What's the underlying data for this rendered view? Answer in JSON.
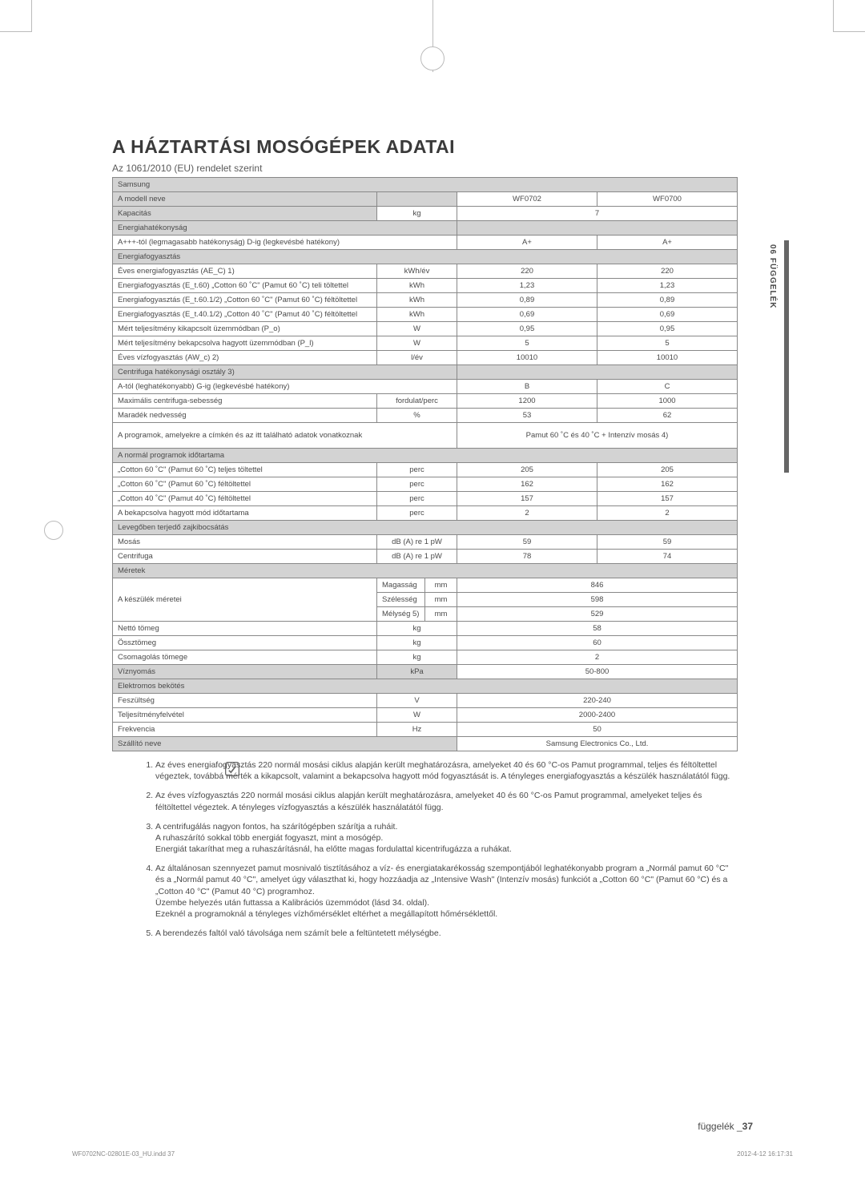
{
  "title": "A HÁZTARTÁSI MOSÓGÉPEK ADATAI",
  "subtitle": "Az 1061/2010 (EU) rendelet szerint",
  "side_tab": "06 FÜGGELÉK",
  "footer_right_label": "függelék _",
  "footer_right_page": "37",
  "footer_left": "WF0702NC-02801E-03_HU.indd   37",
  "footer_ts": "2012-4-12   16:17:31",
  "brand_row": "Samsung",
  "model_label": "A modell neve",
  "models": [
    "WF0702",
    "WF0700"
  ],
  "capacity_label": "Kapacitás",
  "capacity_unit": "kg",
  "capacity_val": "7",
  "eneff_label": "Energiahatékonyság",
  "eneff_scale": "A+++-tól (legmagasabb hatékonyság) D-ig (legkevésbé hatékony)",
  "eneff": [
    "A+",
    "A+"
  ],
  "encons_label": "Energiafogyasztás",
  "rows1": [
    {
      "l": "Éves energiafogyasztás (AE_C) 1)",
      "u": "kWh/év",
      "v": [
        "220",
        "220"
      ],
      "sup": true
    },
    {
      "l": "Energiafogyasztás (E_t.60) „Cotton 60 ˚C\" (Pamut 60 ˚C) teli töltettel",
      "u": "kWh",
      "v": [
        "1,23",
        "1,23"
      ]
    },
    {
      "l": "Energiafogyasztás (E_t.60.1/2) „Cotton 60 ˚C\" (Pamut 60 ˚C) féltöltettel",
      "u": "kWh",
      "v": [
        "0,89",
        "0,89"
      ]
    },
    {
      "l": "Energiafogyasztás (E_t.40.1/2) „Cotton 40 ˚C\" (Pamut 40 ˚C) féltöltettel",
      "u": "kWh",
      "v": [
        "0,69",
        "0,69"
      ]
    },
    {
      "l": "Mért teljesítmény kikapcsolt üzemmódban (P_o)",
      "u": "W",
      "v": [
        "0,95",
        "0,95"
      ]
    },
    {
      "l": "Mért teljesítmény bekapcsolva hagyott üzemmódban (P_l)",
      "u": "W",
      "v": [
        "5",
        "5"
      ]
    },
    {
      "l": "Éves vízfogyasztás (AW_c) 2)",
      "u": "l/év",
      "v": [
        "10010",
        "10010"
      ],
      "sup": true
    }
  ],
  "spineff_label": "Centrifuga hatékonysági osztály 3)",
  "spineff_scale": "A-tól (leghatékonyabb) G-ig (legkevésbé hatékony)",
  "spineff": [
    "B",
    "C"
  ],
  "maxspin_label": "Maximális centrifuga-sebesség",
  "maxspin_unit": "fordulat/perc",
  "maxspin": [
    "1200",
    "1000"
  ],
  "moist_label": "Maradék nedvesség",
  "moist_unit": "%",
  "moist": [
    "53",
    "62"
  ],
  "prog_span_label": "A programok, amelyekre a címkén és az itt található adatok vonatkoznak",
  "prog_span_val": "Pamut 60 ˚C és 40 ˚C + Intenzív mosás 4)",
  "progdur_label": "A normál programok időtartama",
  "rows2": [
    {
      "l": "„Cotton 60 ˚C\" (Pamut 60 ˚C) teljes töltettel",
      "u": "perc",
      "v": [
        "205",
        "205"
      ]
    },
    {
      "l": "„Cotton 60 ˚C\" (Pamut 60 ˚C) féltöltettel",
      "u": "perc",
      "v": [
        "162",
        "162"
      ]
    },
    {
      "l": "„Cotton 40 ˚C\" (Pamut 40 ˚C) féltöltettel",
      "u": "perc",
      "v": [
        "157",
        "157"
      ]
    },
    {
      "l": "A bekapcsolva hagyott mód időtartama",
      "u": "perc",
      "v": [
        "2",
        "2"
      ]
    }
  ],
  "noise_label": "Levegőben terjedő zajkibocsátás",
  "wash_label": "Mosás",
  "wash_unit": "dB (A) re 1 pW",
  "wash": [
    "59",
    "59"
  ],
  "spin_label": "Centrifuga",
  "spin_unit": "dB (A) re 1 pW",
  "spin": [
    "78",
    "74"
  ],
  "dims_label": "Méretek",
  "appdim_label": "A készülék méretei",
  "dim_h_lbl": "Magasság",
  "dim_h": "846",
  "dim_w_lbl": "Szélesség",
  "dim_w": "598",
  "dim_d_lbl": "Mélység 5)",
  "dim_d": "529",
  "mm": "mm",
  "net_label": "Nettó tömeg",
  "net_unit": "kg",
  "net_val": "58",
  "gross_label": "Össztömeg",
  "gross_unit": "kg",
  "gross_val": "60",
  "pack_label": "Csomagolás tömege",
  "pack_unit": "kg",
  "pack_val": "2",
  "press_label": "Víznyomás",
  "press_unit": "kPa",
  "press_val": "50-800",
  "elec_label": "Elektromos bekötés",
  "volt_label": "Feszültség",
  "volt_unit": "V",
  "volt_val": "220-240",
  "pow_label": "Teljesítményfelvétel",
  "pow_unit": "W",
  "pow_val": "2000-2400",
  "freq_label": "Frekvencia",
  "freq_unit": "Hz",
  "freq_val": "50",
  "supp_label": "Szállító neve",
  "supp_val": "Samsung Electronics Co., Ltd.",
  "notes": [
    "Az éves energiafogyasztás 220 normál mosási ciklus alapján került meghatározásra, amelyeket 40 és 60 °C-os Pamut programmal, teljes és féltöltettel végeztek, továbbá mérték a kikapcsolt, valamint a bekapcsolva hagyott mód fogyasztását is. A tényleges energiafogyasztás a készülék használatától függ.",
    "Az éves vízfogyasztás 220 normál mosási ciklus alapján került meghatározásra, amelyeket 40 és 60 °C-os Pamut programmal, amelyeket teljes és féltöltettel végeztek. A tényleges vízfogyasztás a készülék használatától függ.",
    "A centrifugálás nagyon fontos, ha szárítógépben szárítja a ruháit.\nA ruhaszárító sokkal több energiát fogyaszt, mint a mosógép.\nEnergiát takaríthat meg a ruhaszárításnál, ha előtte magas fordulattal kicentrifugázza a ruhákat.",
    "Az általánosan szennyezet pamut mosnivaló tisztításához a víz- és energiatakarékosság szempontjából leghatékonyabb program a „Normál pamut 60 °C\" és a „Normál pamut 40 °C\", amelyet úgy választhat ki, hogy hozzáadja az „Intensive Wash\" (Intenzív mosás) funkciót a „Cotton 60 °C\" (Pamut 60 °C) és a „Cotton 40 °C\" (Pamut 40 °C) programhoz.\nÜzembe helyezés után futtassa a Kalibrációs üzemmódot (lásd 34. oldal).\nEzeknél a programoknál a tényleges vízhőmérséklet eltérhet a megállapított hőmérséklettől.",
    "A berendezés faltól való távolsága nem számít bele a feltüntetett mélységbe."
  ]
}
